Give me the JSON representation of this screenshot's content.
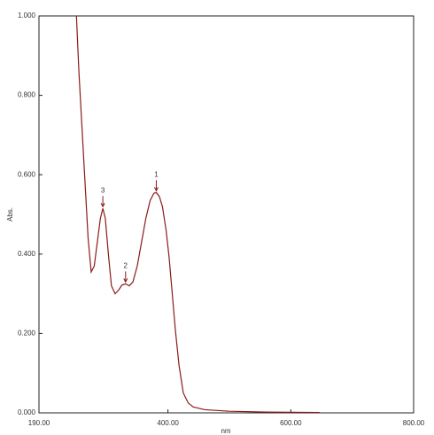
{
  "chart_data": {
    "type": "line",
    "x_label": "nm",
    "y_label": "Abs.",
    "xlim": [
      190,
      800
    ],
    "ylim": [
      0,
      1
    ],
    "xticks": [
      {
        "value": 190,
        "label": "190.00"
      },
      {
        "value": 400,
        "label": "400.00"
      },
      {
        "value": 600,
        "label": "600.00"
      },
      {
        "value": 800,
        "label": "800.00"
      }
    ],
    "yticks": [
      {
        "value": 0,
        "label": "0.000"
      },
      {
        "value": 0.2,
        "label": "0.200"
      },
      {
        "value": 0.4,
        "label": "0.400"
      },
      {
        "value": 0.6,
        "label": "0.600"
      },
      {
        "value": 0.8,
        "label": "0.800"
      },
      {
        "value": 1,
        "label": "1.000"
      }
    ],
    "series": [
      {
        "color": "#8b1a1a",
        "x": [
          251,
          255,
          260,
          265,
          270,
          275,
          280,
          285,
          290,
          294,
          298,
          303,
          308,
          314,
          320,
          325,
          331,
          337,
          343,
          350,
          357,
          364,
          371,
          377,
          381,
          386,
          391,
          397,
          402,
          407,
          412,
          418,
          425,
          433,
          441,
          460,
          500,
          560,
          647
        ],
        "values": [
          1.0,
          0.86,
          0.72,
          0.58,
          0.44,
          0.355,
          0.37,
          0.43,
          0.49,
          0.515,
          0.49,
          0.4,
          0.32,
          0.3,
          0.31,
          0.322,
          0.325,
          0.32,
          0.33,
          0.37,
          0.43,
          0.49,
          0.535,
          0.553,
          0.555,
          0.545,
          0.52,
          0.46,
          0.39,
          0.3,
          0.21,
          0.12,
          0.05,
          0.025,
          0.015,
          0.008,
          0.004,
          0.002,
          0.001
        ]
      }
    ],
    "annotations": [
      {
        "text": "1",
        "x": 381,
        "y": 0.555
      },
      {
        "text": "2",
        "x": 331,
        "y": 0.325
      },
      {
        "text": "3",
        "x": 294,
        "y": 0.515
      }
    ]
  }
}
